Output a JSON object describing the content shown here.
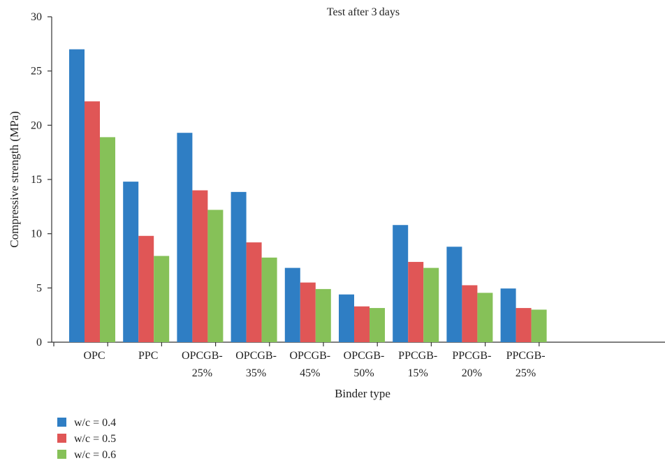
{
  "chart_data": {
    "type": "bar",
    "title": "Test after 3 days",
    "xlabel": "Binder type",
    "ylabel": "Compressive strength (MPa)",
    "ylim": [
      0,
      30
    ],
    "yticks": [
      0,
      5,
      10,
      15,
      20,
      25,
      30
    ],
    "grid": false,
    "legend_position": "bottom-left",
    "categories": [
      [
        "OPC"
      ],
      [
        "PPC"
      ],
      [
        "OPCGB-",
        "25%"
      ],
      [
        "OPCGB-",
        "35%"
      ],
      [
        "OPCGB-",
        "45%"
      ],
      [
        "OPCGB-",
        "50%"
      ],
      [
        "PPCGB-",
        "15%"
      ],
      [
        "PPCGB-",
        "20%"
      ],
      [
        "PPCGB-",
        "25%"
      ]
    ],
    "series": [
      {
        "name": "w/c = 0.4",
        "color": "#2f7ec4",
        "values": [
          27.0,
          14.8,
          19.3,
          13.85,
          6.85,
          4.4,
          10.8,
          8.8,
          4.95
        ]
      },
      {
        "name": "w/c = 0.5",
        "color": "#e05656",
        "values": [
          22.2,
          9.8,
          14.0,
          9.2,
          5.5,
          3.3,
          7.4,
          5.25,
          3.15
        ]
      },
      {
        "name": "w/c = 0.6",
        "color": "#86c158",
        "values": [
          18.9,
          7.95,
          12.2,
          7.8,
          4.9,
          3.15,
          6.85,
          4.55,
          3.0
        ]
      }
    ]
  }
}
